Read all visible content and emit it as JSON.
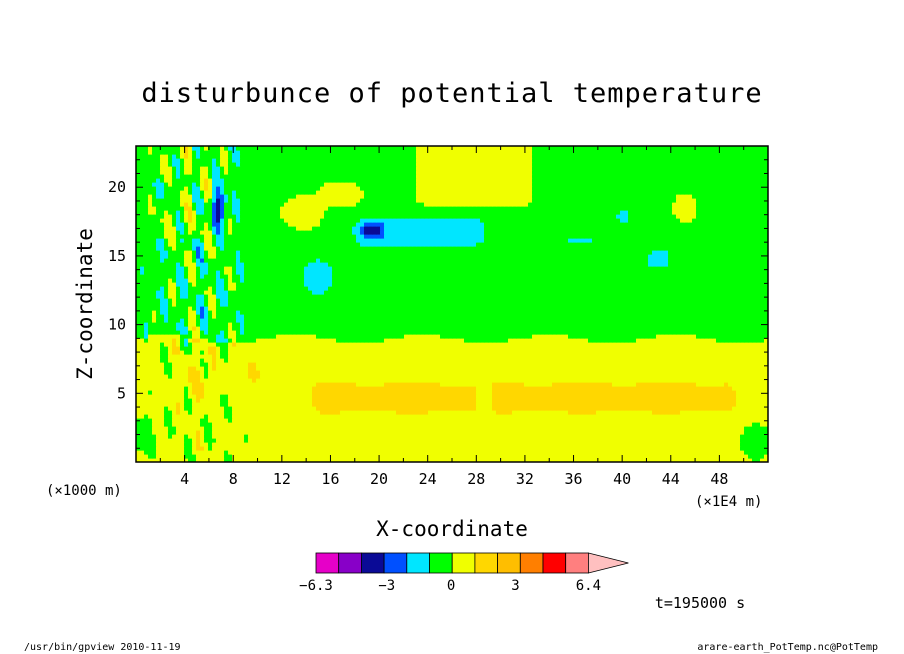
{
  "chart_data": {
    "type": "heatmap",
    "title": "disturbunce of potential temperature",
    "xlabel": "X-coordinate",
    "ylabel": "Z-coordinate",
    "x_unit": "(×1E4 m)",
    "y_unit": "(×1000 m)",
    "xlim": [
      0,
      52
    ],
    "ylim": [
      0,
      23
    ],
    "x_ticks": [
      4,
      8,
      12,
      16,
      20,
      24,
      28,
      32,
      36,
      40,
      44,
      48
    ],
    "y_ticks": [
      5,
      10,
      15,
      20
    ],
    "colorbar": {
      "min": -6.3,
      "max": 6.4,
      "tick_labels": [
        "−6.3",
        "−3",
        "0",
        "3",
        "6.4"
      ],
      "tick_values": [
        -6.3,
        -3,
        0,
        3,
        6.4
      ],
      "levels": [
        -6.3,
        -5.17,
        -4.05,
        -2.92,
        -1.79,
        -0.66,
        0.47,
        1.6,
        2.72,
        3.85,
        4.98,
        6.1,
        6.4
      ],
      "colors": [
        "#e600c8",
        "#8800c8",
        "#0a0a96",
        "#0050ff",
        "#00e6ff",
        "#00ff00",
        "#f0ff00",
        "#ffd700",
        "#ffbe00",
        "#ff7f00",
        "#ff0000",
        "#ff7f7f",
        "#ffc0c0"
      ],
      "extend": "max"
    },
    "field_features": [
      {
        "name": "lower-troposphere",
        "x": [
          0,
          52
        ],
        "z": [
          0,
          9
        ],
        "value": 0.8
      },
      {
        "name": "lower-warm-band",
        "x": [
          13.8,
          50
        ],
        "z": [
          3.3,
          6.2
        ],
        "value": 2.0
      },
      {
        "name": "mid-neutral",
        "x": [
          0,
          52
        ],
        "z": [
          9,
          16
        ],
        "value": -0.2
      },
      {
        "name": "upper-warm-cap",
        "x": [
          22,
          34
        ],
        "z": [
          18,
          22.5
        ],
        "value": 1.0
      },
      {
        "name": "upper-cold-patch",
        "x": [
          17.5,
          29
        ],
        "z": [
          15.5,
          18
        ],
        "value": -1.5
      },
      {
        "name": "cold-core",
        "x": [
          18.5,
          20
        ],
        "z": [
          16.5,
          17.3
        ],
        "value": -3.5
      }
    ],
    "time_label": "t=195000 s",
    "grid": false
  },
  "footer": {
    "left": "/usr/bin/gpview   2010-11-19",
    "right": "arare-earth_PotTemp.nc@PotTemp"
  }
}
